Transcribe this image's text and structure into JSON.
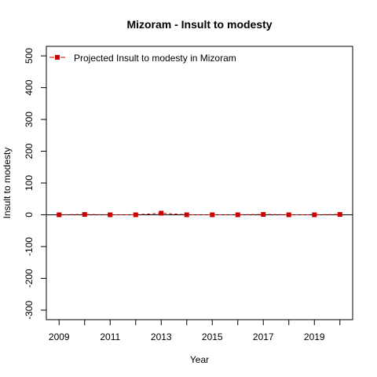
{
  "chart_data": {
    "type": "line",
    "title": "Mizoram  -  Insult to modesty",
    "xlabel": "Year",
    "ylabel": "Insult to modesty",
    "xlim": [
      2008.5,
      2020.5
    ],
    "ylim": [
      -330,
      530
    ],
    "x_ticks": [
      2009,
      2010,
      2011,
      2012,
      2013,
      2014,
      2015,
      2016,
      2017,
      2018,
      2019,
      2020
    ],
    "x_tick_labels": [
      "2009",
      "",
      "2011",
      "",
      "2013",
      "",
      "2015",
      "",
      "2017",
      "",
      "2019",
      ""
    ],
    "y_ticks": [
      -300,
      -200,
      -100,
      0,
      100,
      200,
      300,
      400,
      500
    ],
    "y_tick_labels": [
      "-300",
      "-200",
      "-100",
      "0",
      "100",
      "200",
      "300",
      "400",
      "500"
    ],
    "reference_line_y": 0,
    "legend_position": "top-left",
    "series": [
      {
        "name": "Projected  Insult to modesty  in  Mizoram",
        "color": "#cc0000",
        "marker": "square",
        "x": [
          2009,
          2010,
          2011,
          2012,
          2013,
          2014,
          2015,
          2016,
          2017,
          2018,
          2019,
          2020
        ],
        "values": [
          0,
          1,
          0,
          0,
          5,
          0,
          0,
          0,
          1,
          0,
          0,
          1
        ]
      }
    ]
  }
}
